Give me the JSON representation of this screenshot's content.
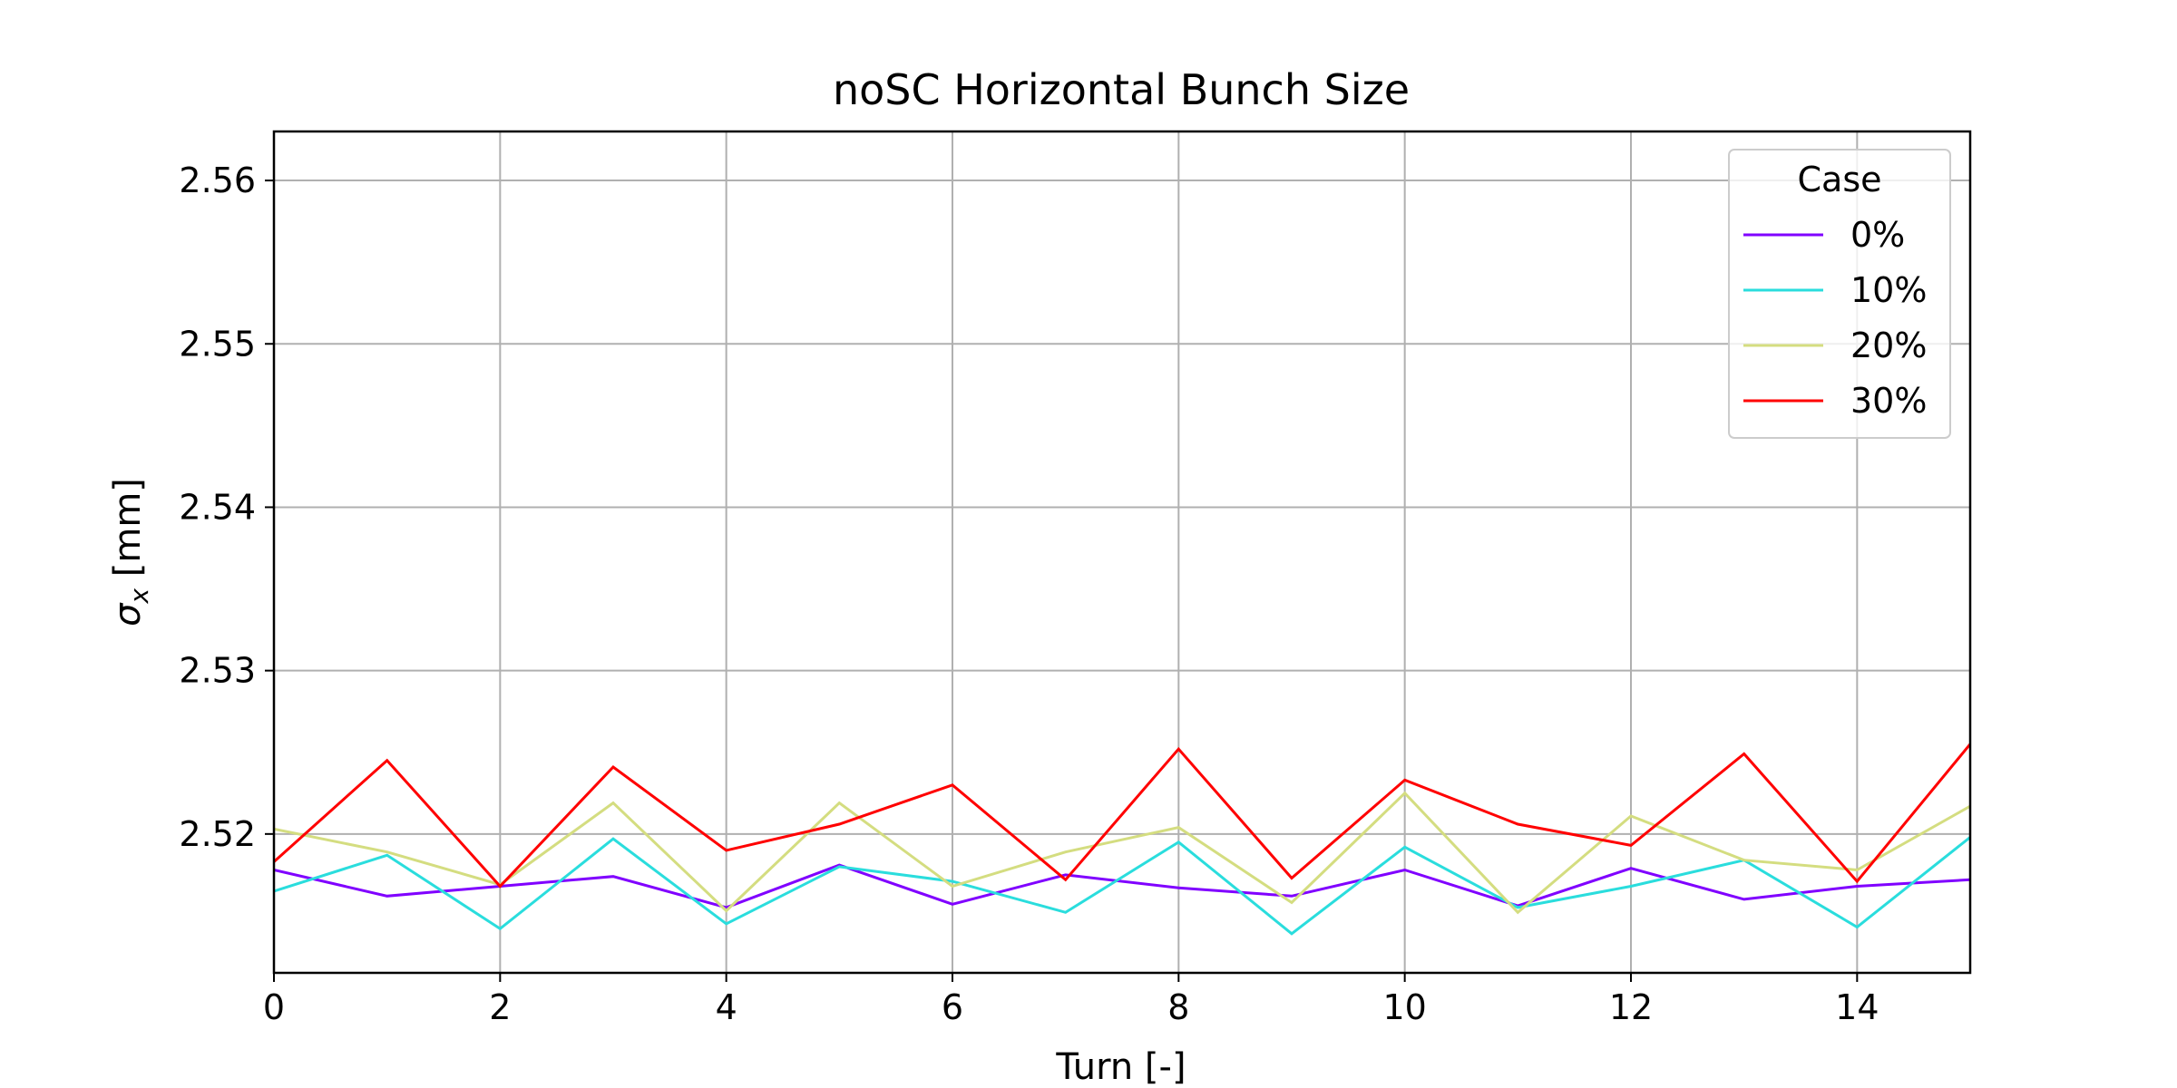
{
  "chart_data": {
    "type": "line",
    "title": "noSC Horizontal Bunch Size",
    "xlabel": "Turn [-]",
    "ylabel_symbol": "σ",
    "ylabel_subscript": "x",
    "ylabel_unit": "[mm]",
    "xlim": [
      0,
      15
    ],
    "ylim": [
      2.5115,
      2.563
    ],
    "xticks": [
      "0",
      "2",
      "4",
      "6",
      "8",
      "10",
      "12",
      "14"
    ],
    "yticks": [
      "2.52",
      "2.53",
      "2.54",
      "2.55",
      "2.56"
    ],
    "grid": true,
    "legend": {
      "title": "Case",
      "placement": "top-right"
    },
    "x": [
      0,
      1,
      2,
      3,
      4,
      5,
      6,
      7,
      8,
      9,
      10,
      11,
      12,
      13,
      14,
      15
    ],
    "series": [
      {
        "name": "0%",
        "color": "#8000ff",
        "values": [
          2.5178,
          2.5162,
          2.5168,
          2.5174,
          2.5155,
          2.5181,
          2.5157,
          2.5175,
          2.5167,
          2.5162,
          2.5178,
          2.5156,
          2.5179,
          2.516,
          2.5168,
          2.5172
        ]
      },
      {
        "name": "10%",
        "color": "#2adddd",
        "values": [
          2.5165,
          2.5187,
          2.5142,
          2.5197,
          2.5145,
          2.518,
          2.5171,
          2.5152,
          2.5195,
          2.5139,
          2.5192,
          2.5155,
          2.5168,
          2.5184,
          2.5143,
          2.5198
        ]
      },
      {
        "name": "20%",
        "color": "#d4dd80",
        "values": [
          2.5203,
          2.5189,
          2.5169,
          2.5219,
          2.5153,
          2.5219,
          2.5168,
          2.5189,
          2.5204,
          2.5158,
          2.5225,
          2.5152,
          2.5211,
          2.5184,
          2.5178,
          2.5217
        ]
      },
      {
        "name": "30%",
        "color": "#ff0000",
        "values": [
          2.5183,
          2.5245,
          2.5168,
          2.5241,
          2.519,
          2.5206,
          2.523,
          2.5172,
          2.5252,
          2.5173,
          2.5233,
          2.5206,
          2.5193,
          2.5249,
          2.5171,
          2.5255
        ]
      }
    ]
  }
}
